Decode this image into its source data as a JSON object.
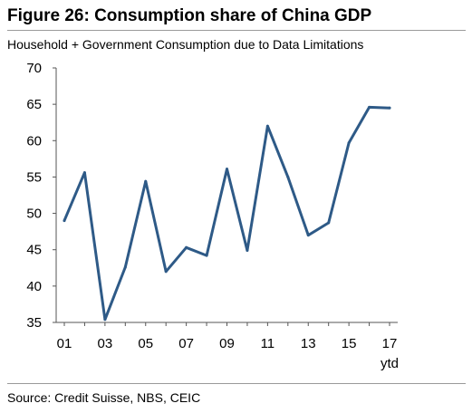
{
  "figure": {
    "title": "Figure 26: Consumption share of China GDP",
    "subtitle": "Household + Government Consumption due to Data Limitations",
    "source": "Source: Credit Suisse, NBS, CEIC"
  },
  "chart_data": {
    "type": "line",
    "title": "Figure 26: Consumption share of China GDP",
    "subtitle": "Household + Government Consumption due to Data Limitations",
    "xlabel": "",
    "ylabel": "",
    "x": [
      "01",
      "02",
      "03",
      "04",
      "05",
      "06",
      "07",
      "08",
      "09",
      "10",
      "11",
      "12",
      "13",
      "14",
      "15",
      "16",
      "17"
    ],
    "x_tick_labels": [
      "01",
      "03",
      "05",
      "07",
      "09",
      "11",
      "13",
      "15",
      "17"
    ],
    "x_tick_sublabel": "ytd",
    "y_ticks": [
      35,
      40,
      45,
      50,
      55,
      60,
      65,
      70
    ],
    "ylim": [
      35,
      70
    ],
    "grid": false,
    "legend": "none",
    "series": [
      {
        "values": [
          49.0,
          55.6,
          35.4,
          42.6,
          54.4,
          42.0,
          45.3,
          44.2,
          56.1,
          44.9,
          62.0,
          55.0,
          47.0,
          48.7,
          59.7,
          64.6,
          64.5
        ],
        "color": "#2e5a87"
      }
    ],
    "axis_color": "#555555"
  }
}
